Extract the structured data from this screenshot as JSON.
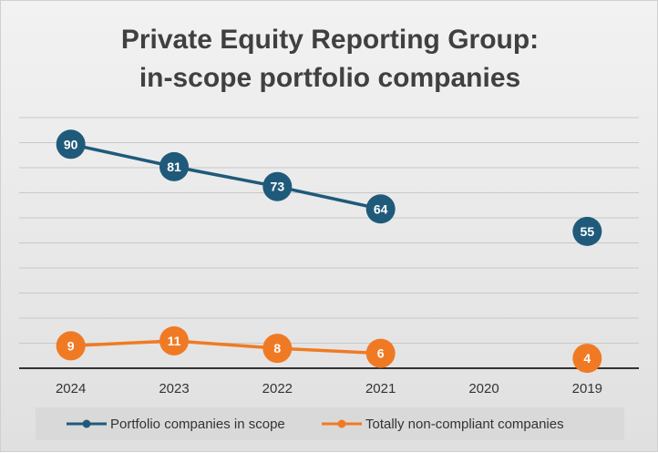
{
  "chart_data": {
    "type": "line",
    "title": "Private Equity Reporting Group:",
    "subtitle": "in-scope portfolio companies",
    "categories": [
      "2024",
      "2023",
      "2022",
      "2021",
      "2020",
      "2019"
    ],
    "series": [
      {
        "name": "Portfolio companies in scope",
        "color": "#1f5a7a",
        "values": [
          90,
          81,
          73,
          64,
          null,
          55
        ],
        "labels": [
          "90",
          "81",
          "73",
          "64",
          "",
          "55"
        ]
      },
      {
        "name": "Totally non-compliant companies",
        "color": "#f07a24",
        "values": [
          9,
          11,
          8,
          6,
          null,
          4
        ],
        "labels": [
          "9",
          "11",
          "8",
          "6",
          "",
          "4"
        ]
      }
    ],
    "ylim": [
      0,
      100
    ],
    "grid": true,
    "legend_position": "bottom"
  }
}
